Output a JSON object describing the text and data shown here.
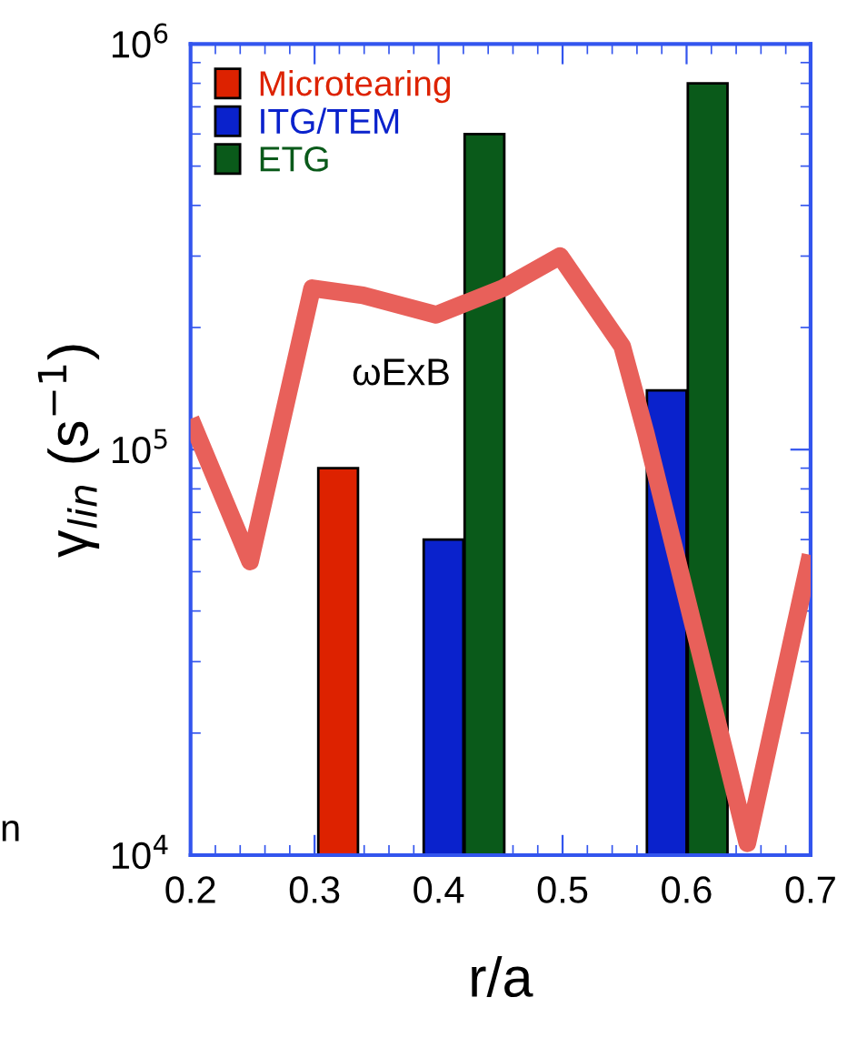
{
  "chart_data": {
    "type": "bar",
    "xlabel": "r/a",
    "ylabel": "γ$_{lin}$ (s$^{−1}$)",
    "log": "y",
    "legend": "top left",
    "grid": false,
    "xlim": [
      0.2,
      0.7
    ],
    "xticks": [
      0.2,
      0.3,
      0.4,
      0.5,
      0.6,
      0.7
    ],
    "ylim": [
      10000,
      1000000
    ],
    "yticks": [
      {
        "value": 10000,
        "label": "10$^{4}$"
      },
      {
        "value": 100000,
        "label": "10$^{5}$"
      },
      {
        "value": 1000000,
        "label": "10$^{6}$"
      }
    ],
    "series": [
      {
        "name": "Microtearing",
        "color": "#dd2200",
        "x": [
          0.319
        ],
        "values": [
          90000
        ]
      },
      {
        "name": "ITG/TEM",
        "color": "#0a22cc",
        "x": [
          0.404,
          0.584
        ],
        "values": [
          60000,
          140000
        ]
      },
      {
        "name": "ETG",
        "color": "#0a5a1a",
        "x": [
          0.437,
          0.617
        ],
        "values": [
          600000,
          800000
        ]
      },
      {
        "color": "#e8605a",
        "type": "line",
        "x": [
          0.2,
          0.248,
          0.298,
          0.339,
          0.398,
          0.452,
          0.498,
          0.548,
          0.567,
          0.649,
          0.7
        ],
        "values": [
          119000,
          53000,
          250000,
          240000,
          215000,
          250000,
          300000,
          180000,
          110000,
          10700,
          55000
        ]
      }
    ],
    "annotations": [
      "ωExB",
      "n"
    ]
  }
}
